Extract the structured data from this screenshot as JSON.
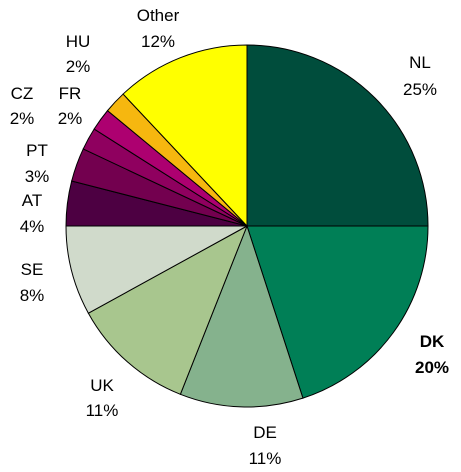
{
  "chart_data": {
    "type": "pie",
    "title": "",
    "start_angle_deg": 0,
    "direction": "clockwise",
    "slice_stroke": "#000000",
    "slices": [
      {
        "name": "NL",
        "value": 25,
        "label": "25%",
        "color": "#004d3c",
        "bold": false
      },
      {
        "name": "DK",
        "value": 20,
        "label": "20%",
        "color": "#007f56",
        "bold": true
      },
      {
        "name": "DE",
        "value": 11,
        "label": "11%",
        "color": "#85b28d",
        "bold": false
      },
      {
        "name": "UK",
        "value": 11,
        "label": "11%",
        "color": "#a8c68e",
        "bold": false
      },
      {
        "name": "SE",
        "value": 8,
        "label": "8%",
        "color": "#d0dacb",
        "bold": false
      },
      {
        "name": "AT",
        "value": 4,
        "label": "4%",
        "color": "#4d0042",
        "bold": false
      },
      {
        "name": "PT",
        "value": 3,
        "label": "3%",
        "color": "#73004f",
        "bold": false
      },
      {
        "name": "CZ",
        "value": 2,
        "label": "2%",
        "color": "#8f005f",
        "bold": false
      },
      {
        "name": "FR",
        "value": 2,
        "label": "2%",
        "color": "#ad0070",
        "bold": false
      },
      {
        "name": "HU",
        "value": 2,
        "label": "2%",
        "color": "#f6b70f",
        "bold": false
      },
      {
        "name": "Other",
        "value": 12,
        "label": "12%",
        "color": "#ffff00",
        "bold": false
      }
    ]
  }
}
